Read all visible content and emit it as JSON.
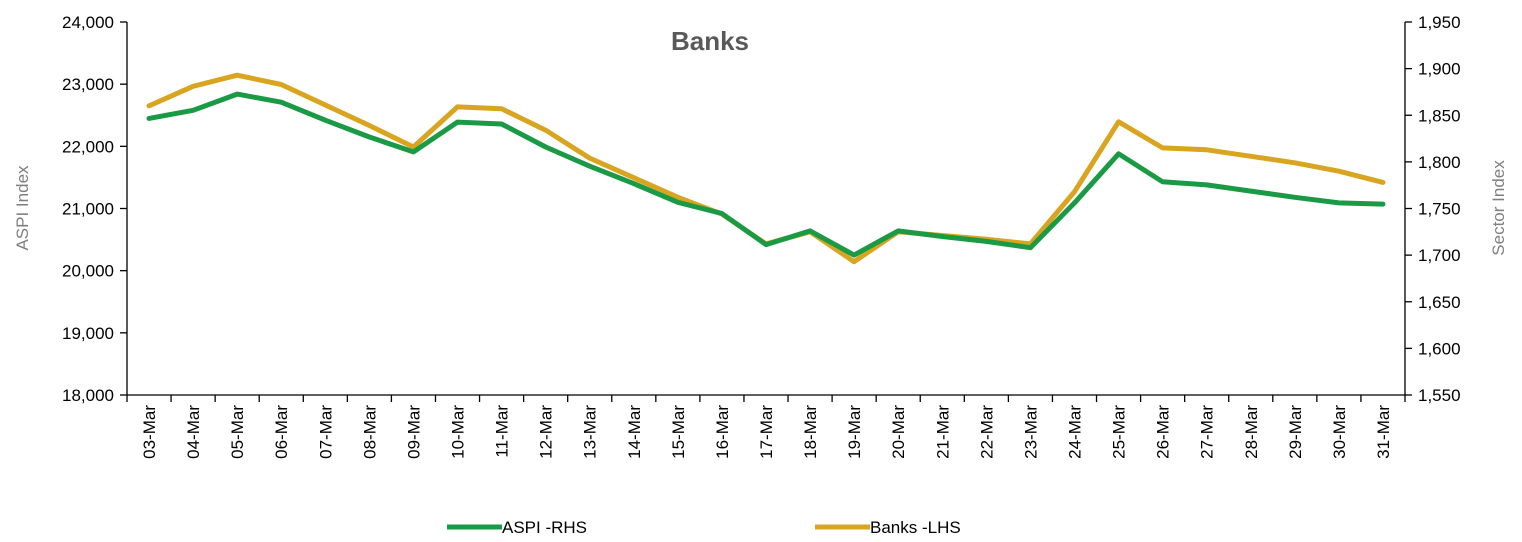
{
  "chart_data": {
    "type": "line",
    "title": "Banks",
    "ylabel": "ASPI Index",
    "y2label": "Sector Index",
    "ylim": [
      18000,
      24000
    ],
    "y2lim": [
      1550,
      1950
    ],
    "yticks": [
      "18,000",
      "19,000",
      "20,000",
      "21,000",
      "22,000",
      "23,000",
      "24,000"
    ],
    "y2ticks": [
      "1,550",
      "1,600",
      "1,650",
      "1,700",
      "1,750",
      "1,800",
      "1,850",
      "1,900",
      "1,950"
    ],
    "categories": [
      "03-Mar",
      "04-Mar",
      "05-Mar",
      "06-Mar",
      "07-Mar",
      "08-Mar",
      "09-Mar",
      "10-Mar",
      "11-Mar",
      "12-Mar",
      "13-Mar",
      "14-Mar",
      "15-Mar",
      "16-Mar",
      "17-Mar",
      "18-Mar",
      "19-Mar",
      "20-Mar",
      "21-Mar",
      "22-Mar",
      "23-Mar",
      "24-Mar",
      "25-Mar",
      "26-Mar",
      "27-Mar",
      "28-Mar",
      "29-Mar",
      "30-Mar",
      "31-Mar"
    ],
    "series": [
      {
        "name": "ASPI -RHS",
        "axis": "left",
        "color": "#1a9a45",
        "values": [
          22450,
          22580,
          22840,
          22710,
          22420,
          22150,
          21910,
          22390,
          22360,
          21990,
          21680,
          21400,
          21100,
          20920,
          20420,
          20640,
          20250,
          20640,
          20550,
          20470,
          20370,
          21090,
          21880,
          21430,
          21380,
          21280,
          21180,
          21090,
          21070
        ]
      },
      {
        "name": "Banks -LHS",
        "axis": "right",
        "color": "#d9a520",
        "values": [
          1860,
          1881,
          1893,
          1883,
          1861,
          1839,
          1816,
          1859,
          1857,
          1834,
          1804,
          1783,
          1762,
          1744,
          1712,
          1725,
          1693,
          1725,
          1721,
          1717,
          1712,
          1768,
          1843,
          1815,
          1813,
          1806,
          1799,
          1790,
          1778
        ]
      }
    ],
    "legend_position": "bottom",
    "grid": false
  }
}
